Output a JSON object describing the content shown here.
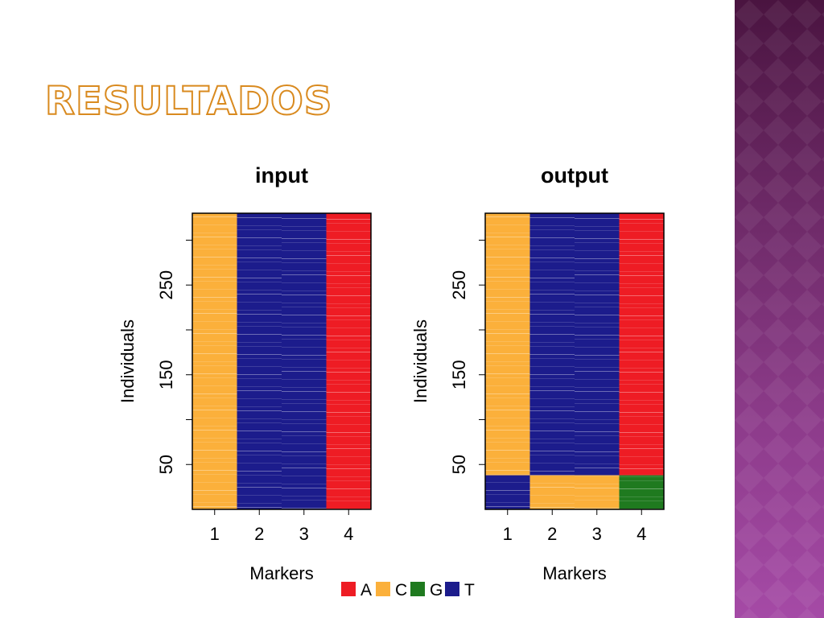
{
  "slide": {
    "title": "Resultados",
    "colors": {
      "title_outline": "#d98a1f",
      "panel_top": "#4a1440",
      "panel_bottom": "#a54aa6"
    }
  },
  "chart_data": [
    {
      "type": "heatmap",
      "title": "input",
      "xlabel": "Markers",
      "ylabel": "Individuals",
      "categories": [
        "1",
        "2",
        "3",
        "4"
      ],
      "y_ticks": [
        50,
        100,
        150,
        200,
        250,
        300
      ],
      "y_tick_labels": [
        "50",
        "",
        "150",
        "",
        "250",
        ""
      ],
      "ylim": [
        0,
        330
      ],
      "columns": [
        {
          "marker": "1",
          "base": "C"
        },
        {
          "marker": "2",
          "base": "T"
        },
        {
          "marker": "3",
          "base": "T"
        },
        {
          "marker": "4",
          "base": "A"
        }
      ]
    },
    {
      "type": "heatmap",
      "title": "output",
      "xlabel": "Markers",
      "ylabel": "Individuals",
      "categories": [
        "1",
        "2",
        "3",
        "4"
      ],
      "y_ticks": [
        50,
        100,
        150,
        200,
        250,
        300
      ],
      "y_tick_labels": [
        "50",
        "",
        "150",
        "",
        "250",
        ""
      ],
      "ylim": [
        0,
        330
      ],
      "columns": [
        {
          "marker": "1",
          "base": "C",
          "lower_base": "T",
          "lower_until": 38
        },
        {
          "marker": "2",
          "base": "T",
          "lower_base": "C",
          "lower_until": 38
        },
        {
          "marker": "3",
          "base": "T",
          "lower_base": "C",
          "lower_until": 38
        },
        {
          "marker": "4",
          "base": "A",
          "lower_base": "G",
          "lower_until": 38
        }
      ]
    }
  ],
  "legend": {
    "placement": "bottom",
    "items": [
      {
        "label": "A",
        "color": "#ee1c24"
      },
      {
        "label": "C",
        "color": "#fbb03b"
      },
      {
        "label": "G",
        "color": "#1f7a1f"
      },
      {
        "label": "T",
        "color": "#1c1c8c"
      }
    ]
  }
}
